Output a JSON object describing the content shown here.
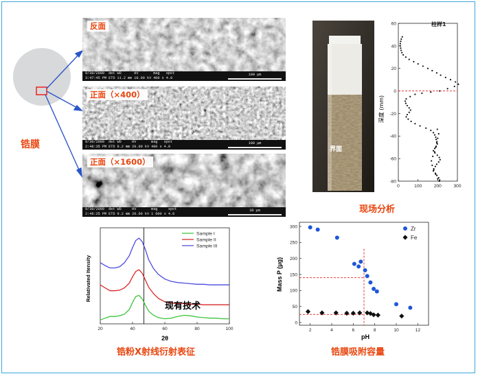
{
  "film": {
    "label": "锆膜",
    "sem_images": [
      {
        "tag": "反面",
        "date": "9/30/2009",
        "time": "3:47:45 PM",
        "det": "ETD",
        "wd": "11.2 mm",
        "hv": "10.00 kV",
        "mag": "400 x",
        "spot": "4.0",
        "scale": "100 μm"
      },
      {
        "tag": "正面（×400）",
        "date": "9/30/2009",
        "time": "2:48:35 PM",
        "det": "ETD",
        "wd": "9.2 mm",
        "hv": "20.00 kV",
        "mag": "400 x",
        "spot": "4.0",
        "scale": "100 μm"
      },
      {
        "tag": "正面（×1600）",
        "date": "9/30/2009",
        "time": "2:46:25 PM",
        "det": "ETD",
        "wd": "9.2 mm",
        "hv": "20.00 kV",
        "mag": "1 600 x",
        "spot": "4.0",
        "scale": "30 μm"
      }
    ],
    "sem_headers": {
      "det": "det",
      "wd": "WD",
      "hv": "HV",
      "mag": "mag",
      "spot": "spot"
    }
  },
  "field": {
    "caption": "现场分析",
    "interface_label": "界面",
    "profile_title": "柱样1"
  },
  "xrd": {
    "caption": "锆粉X射线衍射表征",
    "annotation": "现有技术"
  },
  "adsorption": {
    "caption": "锆膜吸附容量"
  },
  "chart_data": [
    {
      "type": "scatter",
      "title": "柱样1",
      "xlabel": "",
      "ylabel": "深度 (mm)",
      "xlim": [
        0,
        300
      ],
      "ylim": [
        -80,
        60
      ],
      "xticks": [
        0,
        100,
        200,
        300
      ],
      "yticks": [
        -80,
        -60,
        -40,
        -20,
        0,
        20,
        40,
        60
      ],
      "reference_line_y": 0,
      "x": [
        20,
        15,
        12,
        10,
        10,
        12,
        14,
        18,
        25,
        38,
        55,
        78,
        100,
        125,
        150,
        172,
        195,
        215,
        240,
        265,
        290,
        305,
        285,
        250,
        210,
        165,
        120,
        85,
        60,
        40,
        35,
        38,
        45,
        55,
        62,
        55,
        45,
        40,
        50,
        65,
        85,
        110,
        140,
        165,
        178,
        185,
        190,
        192,
        196,
        198,
        192,
        185,
        178,
        186,
        198,
        208,
        212,
        205,
        195,
        188,
        180,
        178,
        188,
        196,
        205,
        210,
        208,
        200,
        190,
        180,
        172,
        168,
        175,
        184,
        190,
        195,
        200,
        205,
        198
      ],
      "y": [
        48,
        46,
        44,
        42,
        40,
        38,
        36,
        34,
        32,
        30,
        28,
        26,
        24,
        22,
        20,
        18,
        16,
        14,
        12,
        10,
        8,
        6,
        4,
        2,
        0,
        -1,
        -2,
        -3,
        -5,
        -7,
        -9,
        -11,
        -13,
        -15,
        -17,
        -19,
        -21,
        -23,
        -25,
        -27,
        -29,
        -31,
        -33,
        -35,
        -37,
        -39,
        -41,
        -43,
        -45,
        -47,
        -49,
        -51,
        -53,
        -55,
        -57,
        -59,
        -61,
        -63,
        -65,
        -67,
        -69,
        -71,
        -73,
        -75,
        -77,
        -79,
        -80,
        -78,
        -74,
        -70,
        -66,
        -62,
        -58,
        -54,
        -50,
        -46,
        -42,
        -38,
        -34
      ]
    },
    {
      "type": "line",
      "title": "",
      "xlabel": "2θ",
      "ylabel": "Relativated Itensity",
      "xlim": [
        20,
        100
      ],
      "xticks": [
        20,
        40,
        60,
        80,
        100
      ],
      "vline_x": 47,
      "legend": "top-right",
      "series": [
        {
          "name": "Sample I",
          "color": "#3cc43c",
          "x": [
            20,
            23,
            26,
            29,
            32,
            35,
            38,
            40,
            42,
            44,
            46,
            48,
            50,
            53,
            56,
            60,
            64,
            68,
            72,
            76,
            80,
            84,
            88,
            92,
            96,
            100
          ],
          "y": [
            0.02,
            0.05,
            0.08,
            0.08,
            0.09,
            0.12,
            0.2,
            0.32,
            0.42,
            0.44,
            0.38,
            0.27,
            0.17,
            0.1,
            0.06,
            0.04,
            0.05,
            0.08,
            0.1,
            0.09,
            0.07,
            0.06,
            0.05,
            0.05,
            0.04,
            0.04
          ]
        },
        {
          "name": "Sample II",
          "color": "#d82626",
          "x": [
            20,
            23,
            26,
            29,
            32,
            35,
            38,
            40,
            42,
            44,
            46,
            48,
            50,
            53,
            56,
            60,
            64,
            68,
            72,
            76,
            80,
            84,
            88,
            92,
            96,
            100
          ],
          "y": [
            0.62,
            0.57,
            0.52,
            0.52,
            0.53,
            0.57,
            0.65,
            0.76,
            0.85,
            0.88,
            0.82,
            0.7,
            0.58,
            0.47,
            0.39,
            0.33,
            0.31,
            0.3,
            0.3,
            0.29,
            0.29,
            0.28,
            0.28,
            0.28,
            0.28,
            0.28
          ]
        },
        {
          "name": "Sample III",
          "color": "#4a4ae0",
          "x": [
            20,
            23,
            26,
            29,
            32,
            35,
            38,
            40,
            42,
            44,
            46,
            48,
            50,
            53,
            56,
            60,
            64,
            68,
            72,
            76,
            80,
            84,
            88,
            92,
            96,
            100
          ],
          "y": [
            1.0,
            0.95,
            0.91,
            0.91,
            0.93,
            1.0,
            1.12,
            1.26,
            1.38,
            1.42,
            1.36,
            1.22,
            1.05,
            0.9,
            0.8,
            0.72,
            0.68,
            0.66,
            0.65,
            0.64,
            0.63,
            0.63,
            0.62,
            0.62,
            0.62,
            0.62
          ]
        }
      ]
    },
    {
      "type": "scatter",
      "title": "",
      "xlabel": "pH",
      "ylabel": "Mass P (μg)",
      "xlim": [
        1,
        13
      ],
      "ylim": [
        0,
        300
      ],
      "xticks": [
        2,
        4,
        6,
        8,
        10,
        12
      ],
      "yticks": [
        0,
        50,
        100,
        150,
        200,
        250,
        300
      ],
      "legend": "top-right",
      "reference_lines": {
        "x": 7,
        "y": [
          140,
          25
        ]
      },
      "series": [
        {
          "name": "Zr",
          "marker": "circle",
          "color": "#1f56d8",
          "x": [
            2,
            2.7,
            4.5,
            6.1,
            6.5,
            6.7,
            7.1,
            7.3,
            7.6,
            7.9,
            8.2,
            10,
            11.3
          ],
          "y": [
            297,
            290,
            265,
            183,
            175,
            190,
            163,
            145,
            125,
            105,
            97,
            57,
            46
          ]
        },
        {
          "name": "Fe",
          "marker": "diamond",
          "color": "#111111",
          "x": [
            1.8,
            3.1,
            4.4,
            5.4,
            6.0,
            6.6,
            7.3,
            7.6,
            7.9,
            8.3,
            10.5
          ],
          "y": [
            34,
            30,
            30,
            29,
            29,
            30,
            30,
            28,
            24,
            23,
            20
          ]
        }
      ]
    }
  ]
}
